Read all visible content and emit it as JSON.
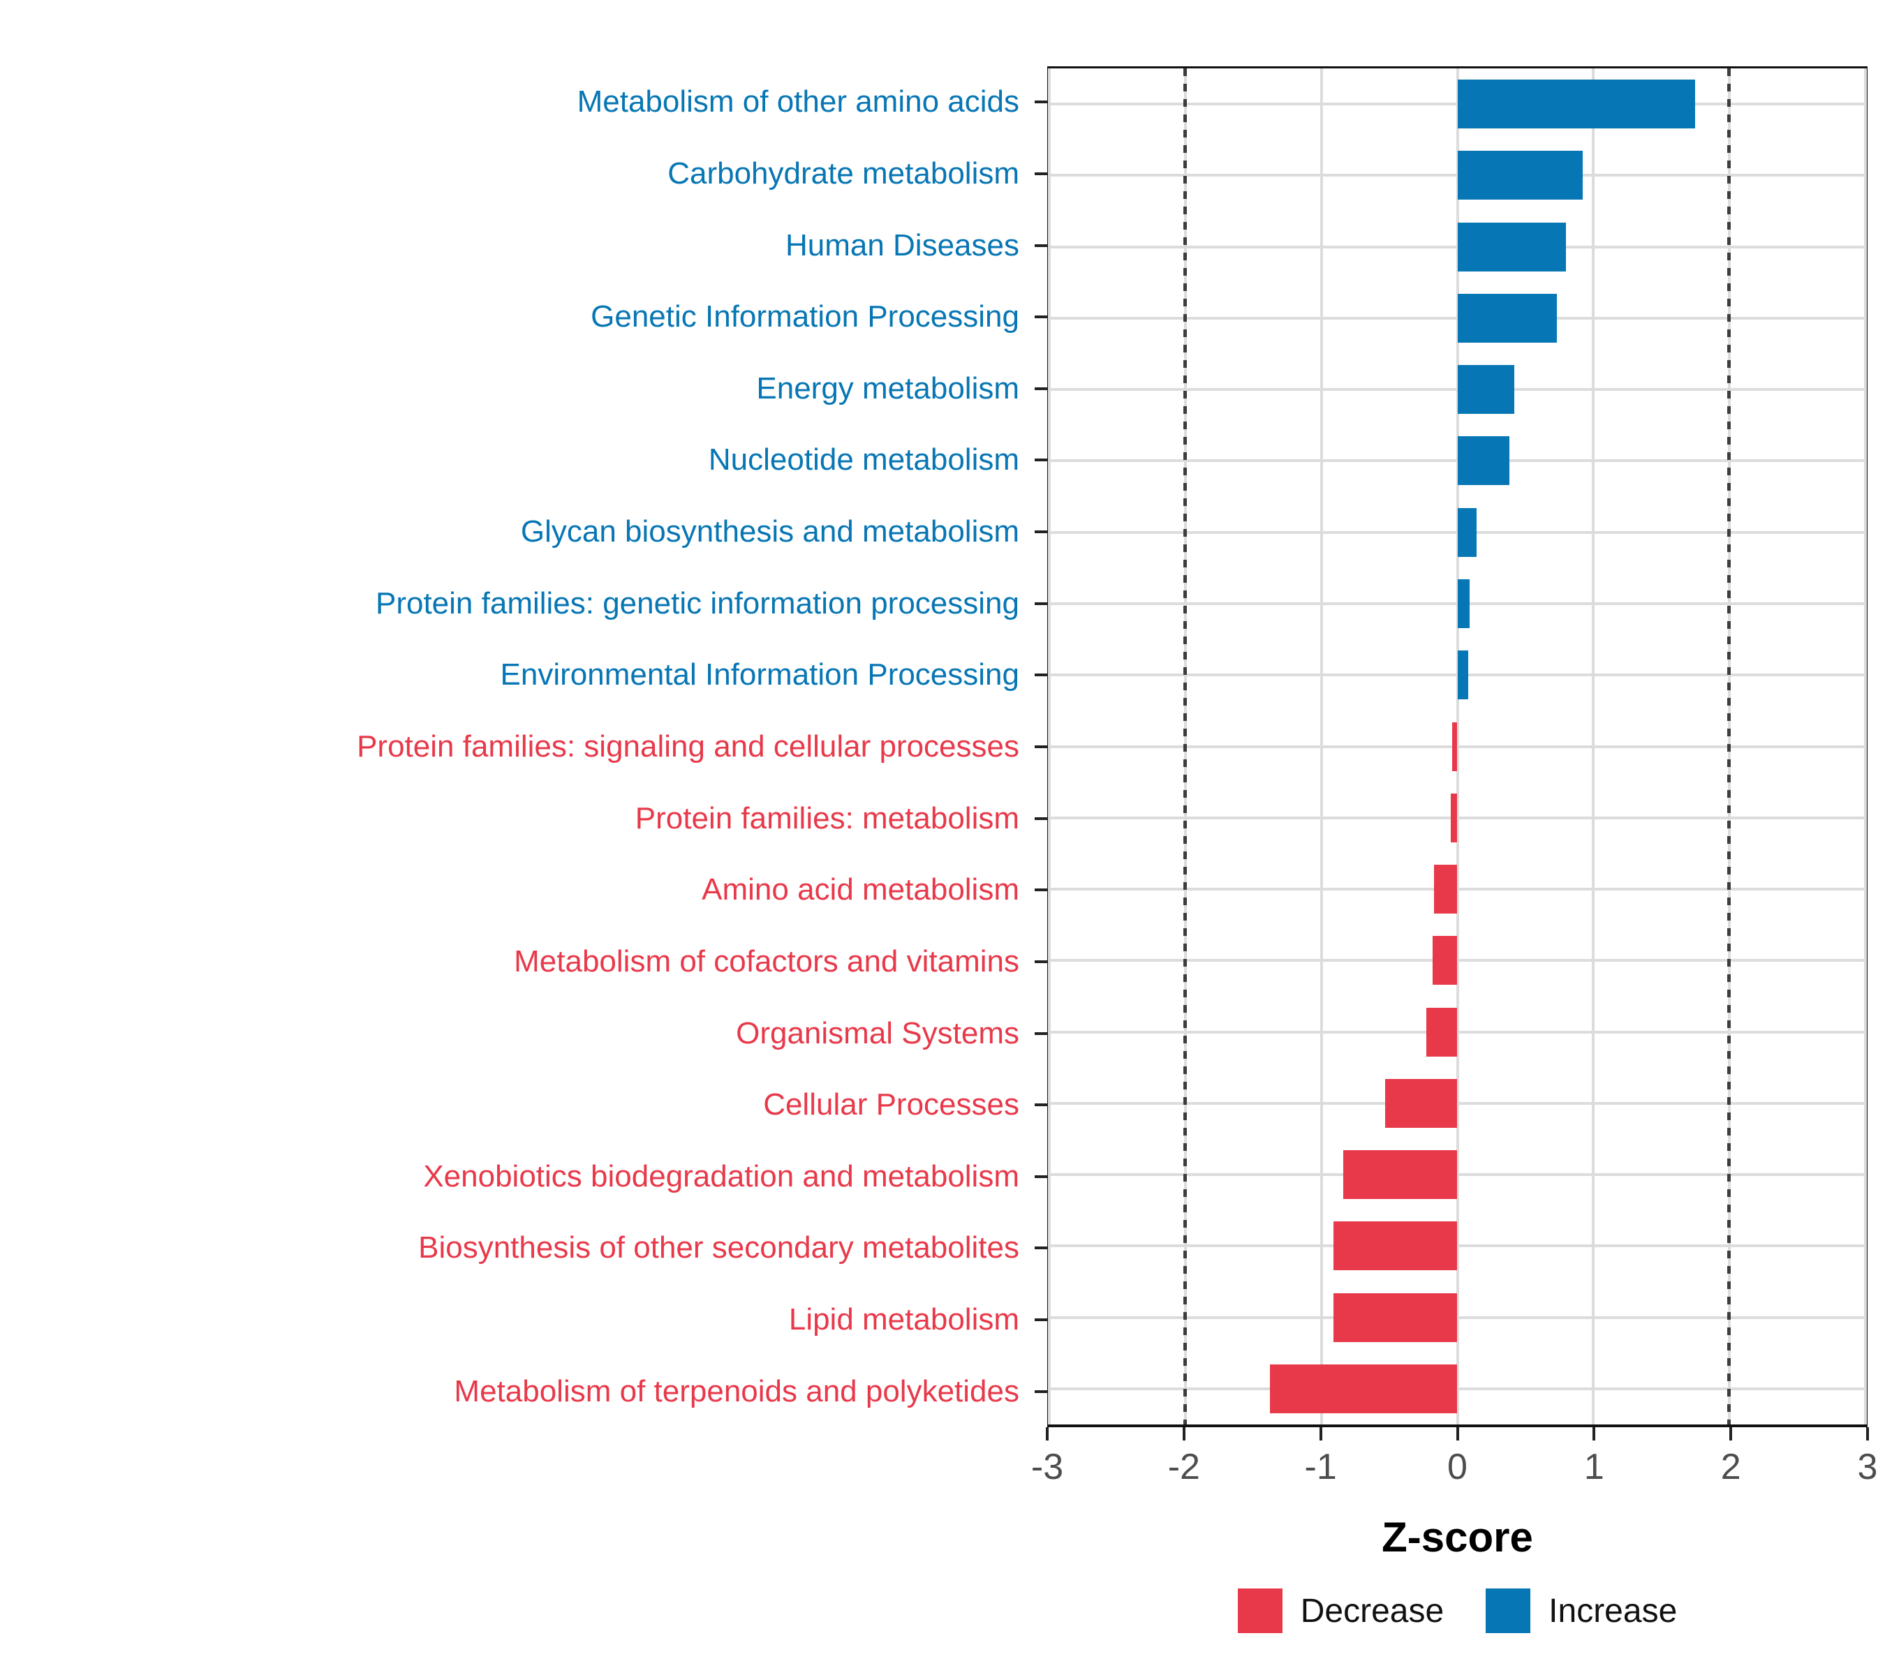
{
  "chart_data": {
    "type": "bar",
    "orientation": "horizontal",
    "title": "",
    "xlabel": "Z-score",
    "ylabel": "",
    "xlim": [
      -3,
      3
    ],
    "x_ticks": [
      -3,
      -2,
      -1,
      0,
      1,
      2,
      3
    ],
    "reference_lines": [
      -2,
      2
    ],
    "grid": true,
    "legend_position": "bottom",
    "categories": [
      "Metabolism of other amino acids",
      "Carbohydrate metabolism",
      "Human Diseases",
      "Genetic Information Processing",
      "Energy metabolism",
      "Nucleotide metabolism",
      "Glycan biosynthesis and metabolism",
      "Protein families: genetic information processing",
      "Environmental Information Processing",
      "Protein families: signaling and cellular processes",
      "Protein families: metabolism",
      "Amino acid metabolism",
      "Metabolism of cofactors and vitamins",
      "Organismal Systems",
      "Cellular Processes",
      "Xenobiotics biodegradation and metabolism",
      "Biosynthesis of other secondary metabolites",
      "Lipid metabolism",
      "Metabolism of terpenoids and polyketides"
    ],
    "values": [
      1.75,
      0.92,
      0.8,
      0.73,
      0.42,
      0.38,
      0.14,
      0.09,
      0.08,
      -0.04,
      -0.05,
      -0.17,
      -0.18,
      -0.23,
      -0.53,
      -0.84,
      -0.91,
      -0.91,
      -1.38
    ],
    "colors": {
      "increase": "#0776b4",
      "decrease": "#e8394a"
    },
    "style": {
      "grid_color": "#dcdcdc",
      "reference_line_color": "#3d3d3d",
      "axis_text_color": "#4d4d4d",
      "panel_border_color": "#111111",
      "background": "#ffffff"
    },
    "legend": [
      {
        "label": "Decrease",
        "color": "#e8394a"
      },
      {
        "label": "Increase",
        "color": "#0776b4"
      }
    ]
  }
}
